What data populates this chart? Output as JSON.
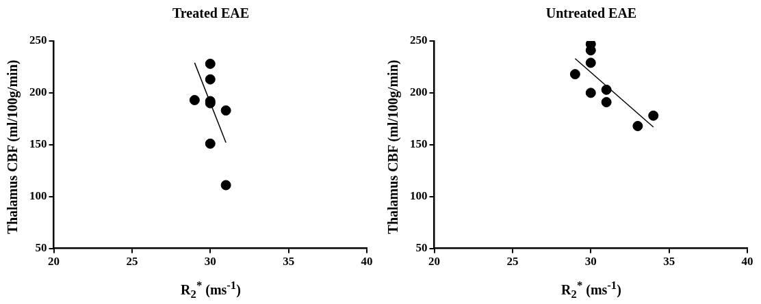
{
  "chart_data": [
    {
      "type": "scatter",
      "title": "Treated EAE",
      "xlabel": "R$_{2}$$^{*}$ (ms$^{-1}$)",
      "ylabel": "Thalamus CBF (ml/100g/min)",
      "xlim": [
        20,
        40
      ],
      "ylim": [
        50,
        250
      ],
      "xticks": [
        20,
        25,
        30,
        35,
        40
      ],
      "yticks": [
        50,
        100,
        150,
        200,
        250
      ],
      "series": [
        {
          "color": "#000000",
          "marker": "circle",
          "x": [
            30,
            30,
            29,
            30,
            30,
            31,
            30,
            31
          ],
          "values": [
            228,
            213,
            193,
            192,
            190,
            183,
            151,
            111
          ]
        },
        {
          "type": "line",
          "color": "#000000",
          "marker": "none",
          "x": [
            29,
            31
          ],
          "values": [
            229,
            152
          ]
        }
      ]
    },
    {
      "type": "scatter",
      "title": "Untreated  EAE",
      "xlabel": "R$_{2}$$^{*}$ (ms$^{-1}$)",
      "ylabel": "Thalamus CBF (ml/100g/min)",
      "xlim": [
        20,
        40
      ],
      "ylim": [
        50,
        250
      ],
      "xticks": [
        20,
        25,
        30,
        35,
        40
      ],
      "yticks": [
        50,
        100,
        150,
        200,
        250
      ],
      "series": [
        {
          "color": "#000000",
          "marker": "circle",
          "x": [
            30,
            30,
            30,
            29,
            30,
            31,
            31,
            33,
            34
          ],
          "values": [
            247,
            241,
            229,
            218,
            200,
            203,
            191,
            168,
            178
          ]
        },
        {
          "type": "line",
          "color": "#000000",
          "marker": "none",
          "x": [
            29,
            34
          ],
          "values": [
            233,
            167
          ]
        }
      ]
    }
  ]
}
